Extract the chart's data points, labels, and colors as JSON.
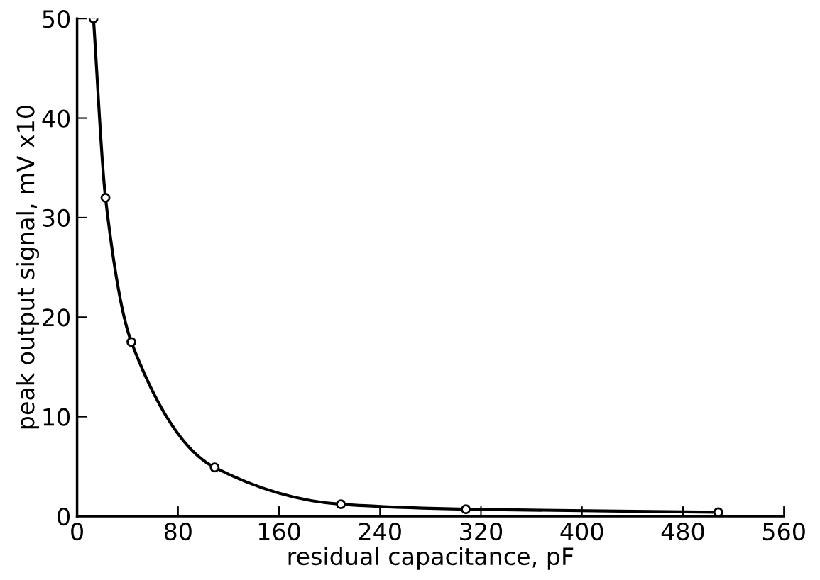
{
  "chart_data": {
    "type": "line",
    "xlabel": "residual capacitance, pF",
    "ylabel": "peak output signal, mV x10",
    "x": [
      13,
      22.5,
      43,
      109,
      209,
      308,
      508
    ],
    "series": [
      {
        "color": "#000000",
        "values": [
          50,
          32,
          17.5,
          4.9,
          1.2,
          0.7,
          0.4
        ]
      }
    ],
    "xlim": [
      0,
      560
    ],
    "ylim": [
      0,
      50
    ],
    "xticks": [
      0,
      80,
      160,
      240,
      320,
      400,
      480,
      560
    ],
    "yticks": [
      0,
      10,
      20,
      30,
      40,
      50
    ],
    "marker": "circle",
    "line_style": "solid",
    "grid": false,
    "legend": false
  }
}
